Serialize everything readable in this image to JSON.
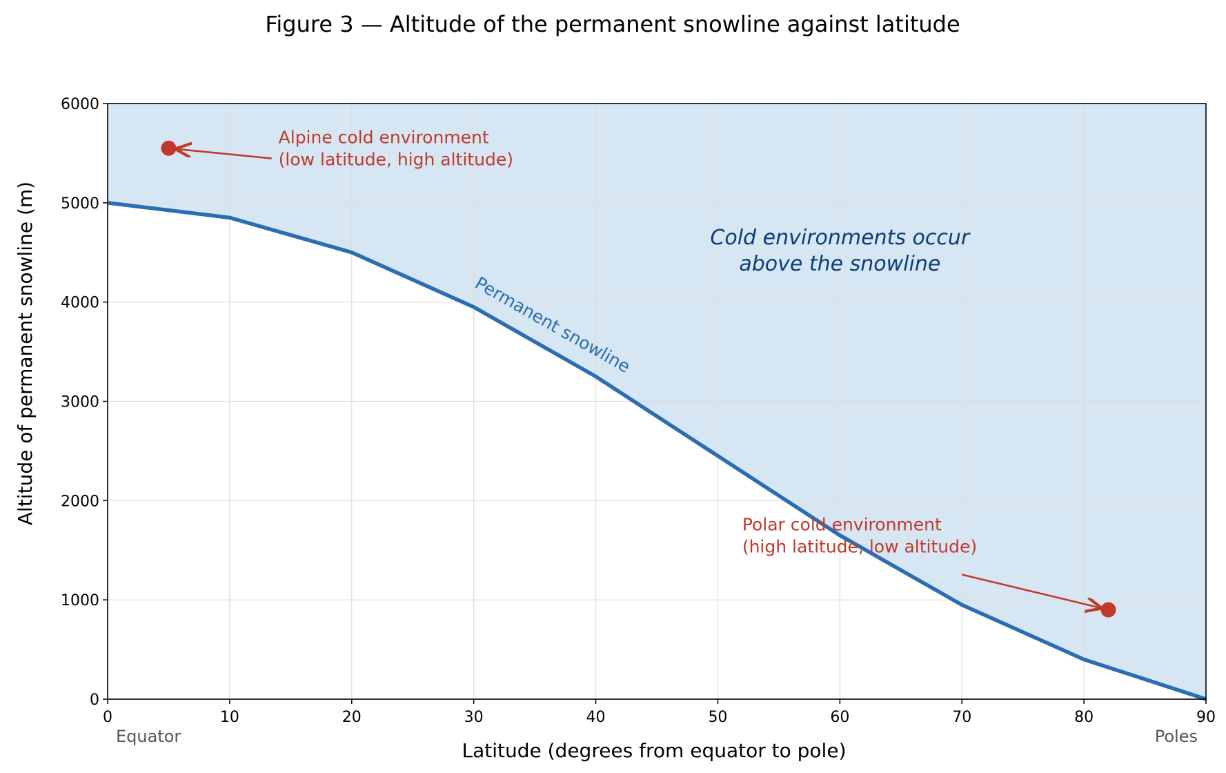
{
  "chart_data": {
    "type": "line",
    "title": "Figure 3 — Altitude of the permanent snowline against latitude",
    "xlabel": "Latitude (degrees from equator to pole)",
    "ylabel": "Altitude of permanent snowline (m)",
    "xlim": [
      0,
      90
    ],
    "ylim": [
      0,
      6000
    ],
    "x_ticks": [
      0,
      10,
      20,
      30,
      40,
      50,
      60,
      70,
      80,
      90
    ],
    "y_ticks": [
      0,
      1000,
      2000,
      3000,
      4000,
      5000,
      6000
    ],
    "grid": true,
    "series": [
      {
        "name": "Permanent snowline",
        "x": [
          0,
          10,
          20,
          30,
          40,
          50,
          60,
          70,
          80,
          90
        ],
        "y": [
          5000,
          4850,
          4500,
          3950,
          3250,
          2450,
          1650,
          950,
          400,
          0
        ]
      }
    ],
    "region_label": "Cold environments occur\nabove the snowline",
    "points": [
      {
        "id": "alpine",
        "x": 5,
        "y": 5550,
        "label": "Alpine cold environment\n(low latitude, high altitude)",
        "label_x": 14,
        "label_y": 5600
      },
      {
        "id": "polar",
        "x": 82,
        "y": 900,
        "label": "Polar cold environment\n(high latitude, low altitude)",
        "label_x": 52,
        "label_y": 1700
      }
    ],
    "x_end_labels": {
      "left": "Equator",
      "right": "Poles"
    },
    "colors": {
      "line": "#2a6db2",
      "fill": "#d6e6f3",
      "annotation": "#c0392b",
      "region_text": "#0d3d78",
      "grid": "#dddddd",
      "end_label": "#555555"
    }
  }
}
